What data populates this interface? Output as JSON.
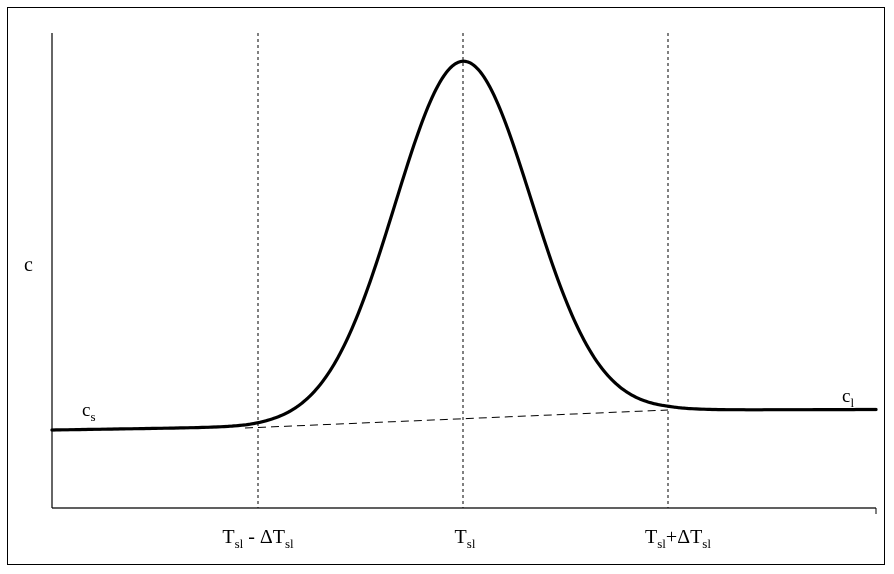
{
  "diagram": {
    "y_axis_label": "c",
    "left_level_label": {
      "main": "c",
      "sub": "s"
    },
    "right_level_label": {
      "main": "c",
      "sub": "l"
    },
    "x_labels": [
      {
        "id": "lower",
        "parts": [
          {
            "t": "T",
            "sub": false
          },
          {
            "t": "sl",
            "sub": true
          },
          {
            "t": " - ΔT",
            "sub": false
          },
          {
            "t": "sl",
            "sub": true
          }
        ]
      },
      {
        "id": "center",
        "parts": [
          {
            "t": "T",
            "sub": false
          },
          {
            "t": "sl",
            "sub": true
          }
        ]
      },
      {
        "id": "upper",
        "parts": [
          {
            "t": "T",
            "sub": false
          },
          {
            "t": "sl",
            "sub": true
          },
          {
            "t": "+ΔT",
            "sub": false
          },
          {
            "t": "sl",
            "sub": true
          }
        ]
      }
    ]
  },
  "colors": {
    "line": "#000000",
    "background": "#ffffff",
    "frame": "#000000"
  }
}
